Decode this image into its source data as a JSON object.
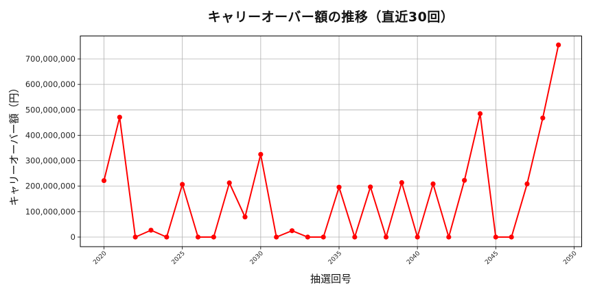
{
  "chart_data": {
    "type": "line",
    "title": "キャリーオーバー額の推移（直近30回）",
    "xlabel": "抽選回号",
    "ylabel": "キャリーオーバー額（円）",
    "x": [
      2020,
      2021,
      2022,
      2023,
      2024,
      2025,
      2026,
      2027,
      2028,
      2029,
      2030,
      2031,
      2032,
      2033,
      2034,
      2035,
      2036,
      2037,
      2038,
      2039,
      2040,
      2041,
      2042,
      2043,
      2044,
      2045,
      2046,
      2047,
      2048,
      2049
    ],
    "series": [
      {
        "name": "キャリーオーバー額",
        "color": "#ff0000",
        "marker": "circle",
        "values": [
          222000000,
          471000000,
          0,
          27000000,
          0,
          207000000,
          0,
          0,
          213000000,
          79000000,
          325000000,
          0,
          25000000,
          0,
          0,
          196000000,
          0,
          197000000,
          0,
          214000000,
          0,
          209000000,
          0,
          223000000,
          485000000,
          0,
          0,
          209000000,
          468000000,
          755000000
        ]
      }
    ],
    "xticks": [
      2020,
      2025,
      2030,
      2035,
      2040,
      2045,
      2050
    ],
    "xtick_labels": [
      "2020",
      "2025",
      "2030",
      "2035",
      "2040",
      "2045",
      "2050"
    ],
    "yticks": [
      0,
      100000000,
      200000000,
      300000000,
      400000000,
      500000000,
      600000000,
      700000000
    ],
    "ytick_labels": [
      "0",
      "100,000,000",
      "200,000,000",
      "300,000,000",
      "400,000,000",
      "500,000,000",
      "600,000,000",
      "700,000,000"
    ],
    "xlim": [
      2018.5,
      2050.5
    ],
    "ylim": [
      -37000000,
      790000000
    ],
    "grid": true,
    "legend": null
  },
  "colors": {
    "line": "#ff0000",
    "grid": "#b0b0b0",
    "axis": "#000000"
  }
}
